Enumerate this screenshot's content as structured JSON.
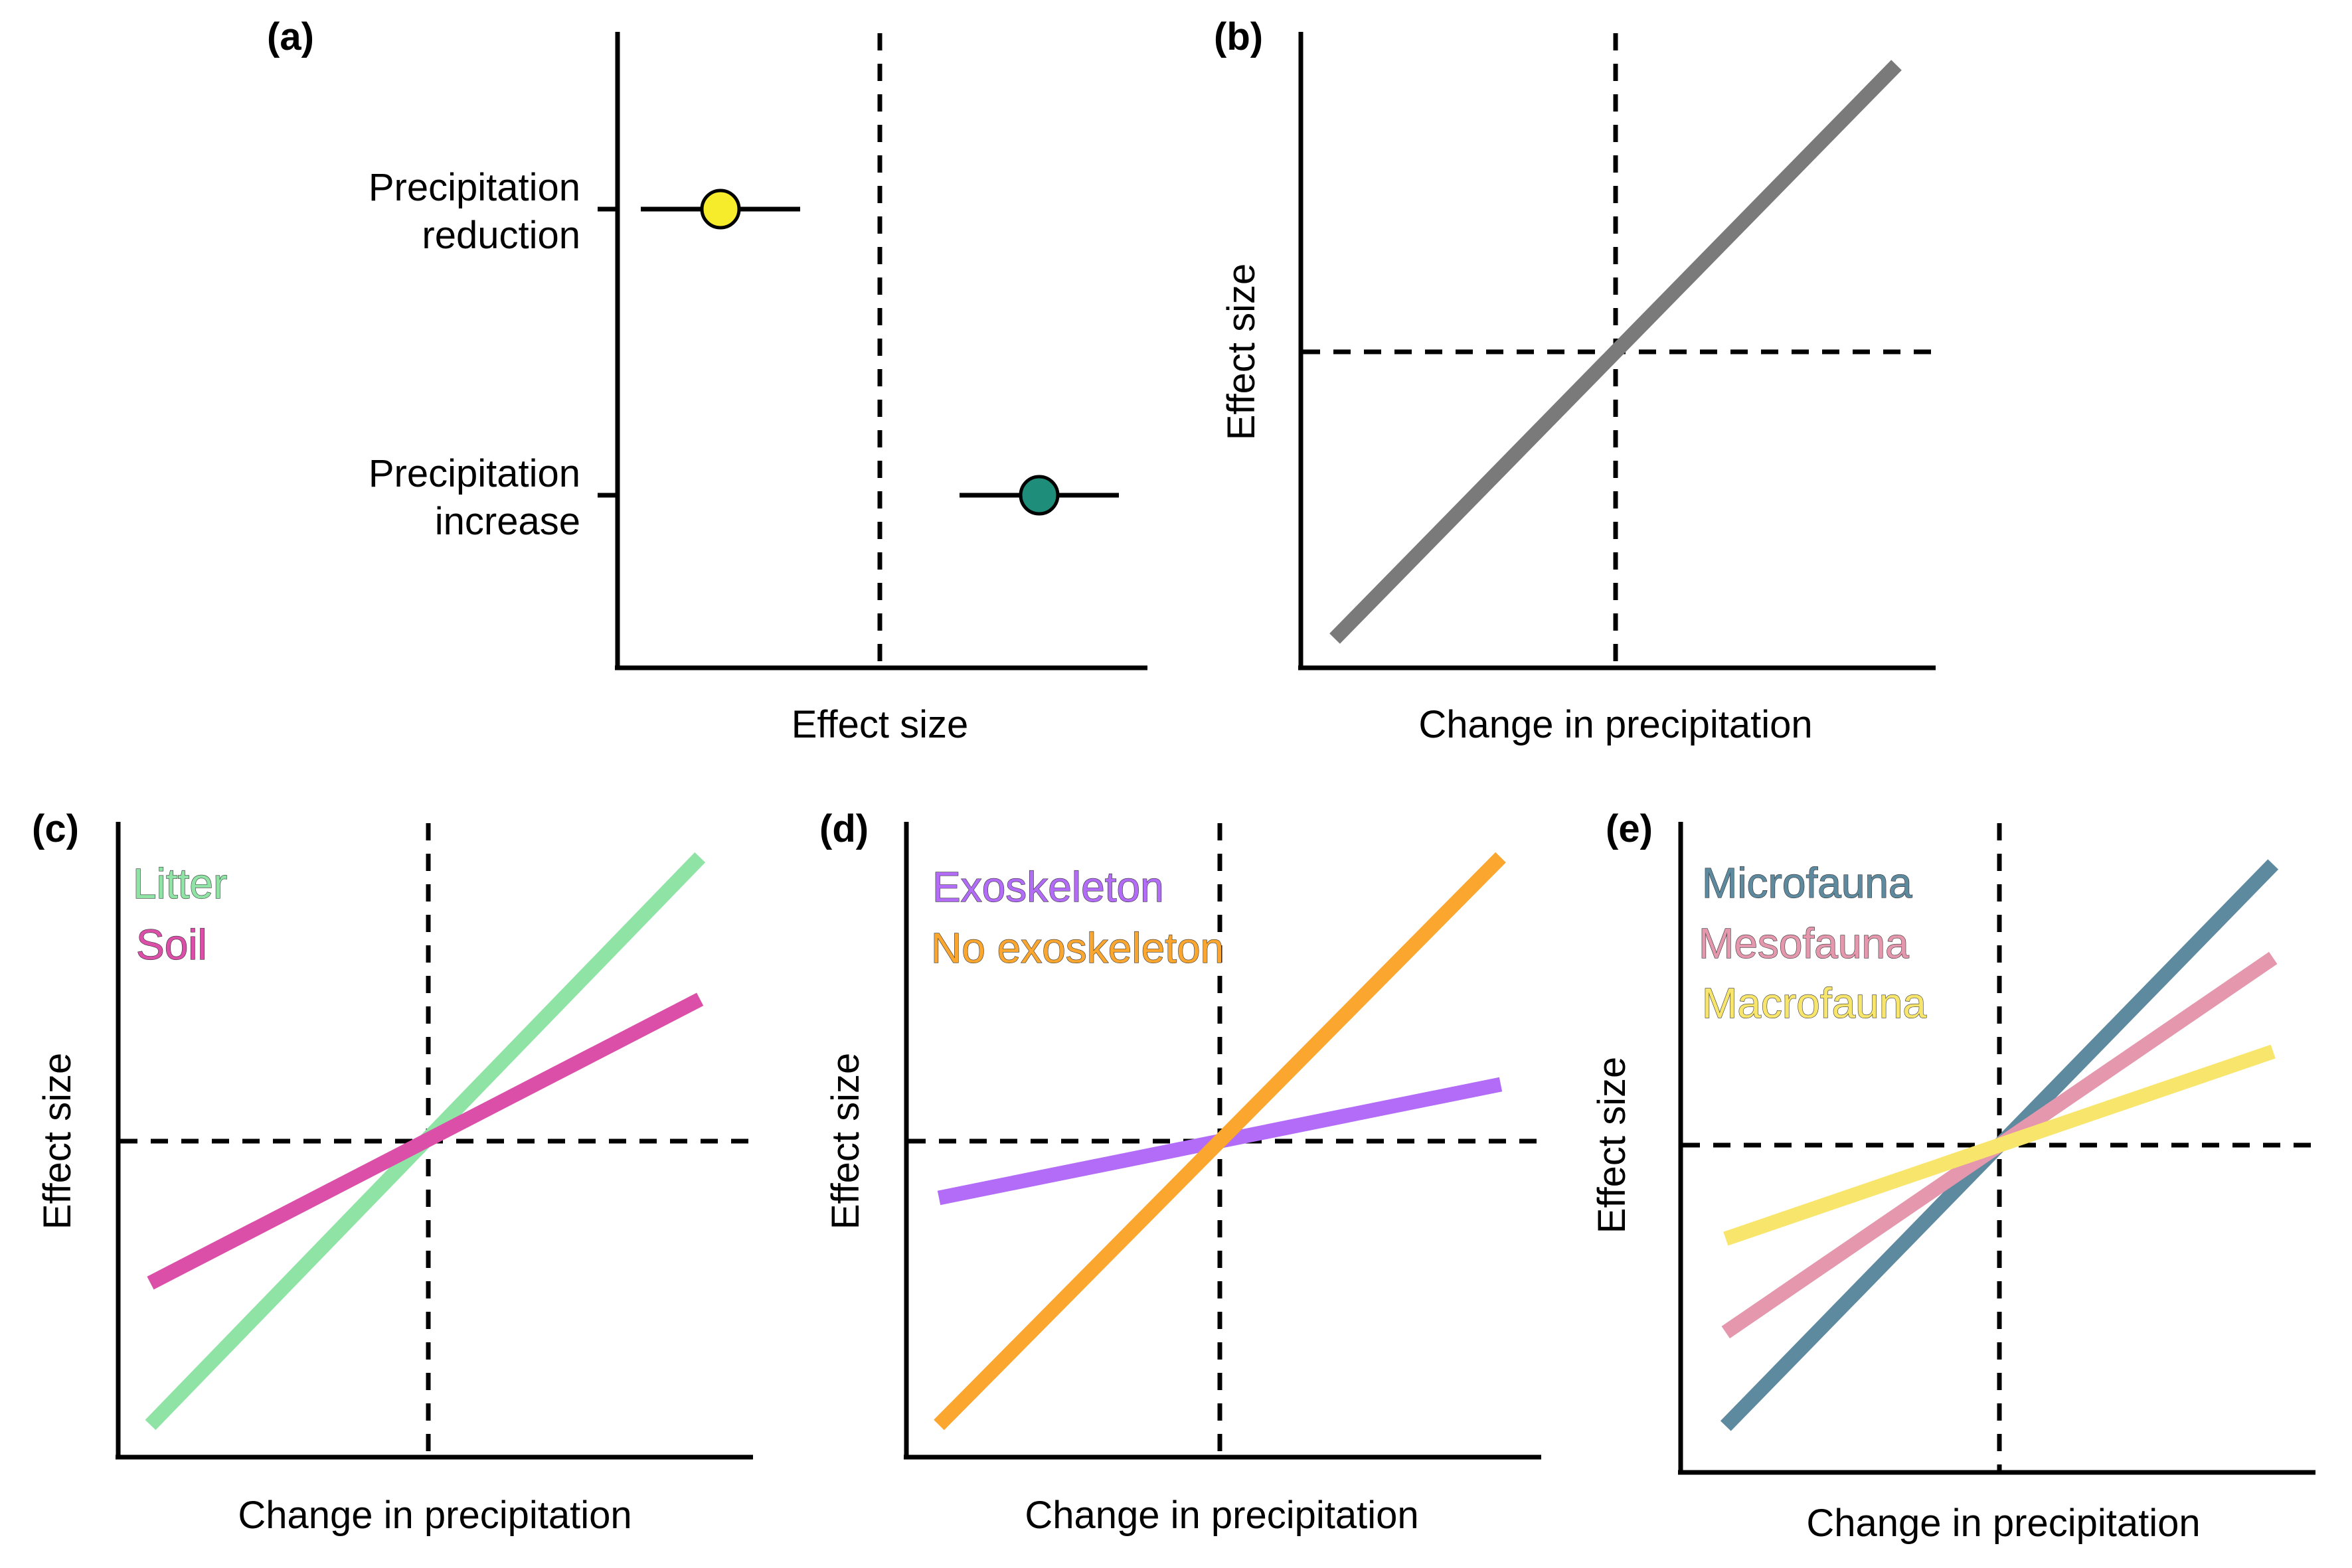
{
  "figure": {
    "panels": [
      {
        "id": "a",
        "label": "(a)",
        "xlabel": "Effect size",
        "rows": [
          {
            "label_line1": "Precipitation",
            "label_line2": "reduction"
          },
          {
            "label_line1": "Precipitation",
            "label_line2": "increase"
          }
        ]
      },
      {
        "id": "b",
        "label": "(b)",
        "xlabel": "Change in precipitation",
        "ylabel": "Effect size"
      },
      {
        "id": "c",
        "label": "(c)",
        "xlabel": "Change in precipitation",
        "ylabel": "Effect size",
        "legend": [
          {
            "name": "Litter"
          },
          {
            "name": "Soil"
          }
        ]
      },
      {
        "id": "d",
        "label": "(d)",
        "xlabel": "Change in precipitation",
        "ylabel": "Effect size",
        "legend": [
          {
            "name": "Exoskeleton"
          },
          {
            "name": "No exoskeleton"
          }
        ]
      },
      {
        "id": "e",
        "label": "(e)",
        "xlabel": "Change in precipitation",
        "ylabel": "Effect size",
        "legend": [
          {
            "name": "Microfauna"
          },
          {
            "name": "Mesofauna"
          },
          {
            "name": "Macrofauna"
          }
        ]
      }
    ]
  },
  "colors": {
    "precip_reduction_point": "#f7ec2b",
    "precip_increase_point": "#1e8e7a",
    "b_line": "#7a7a7a",
    "litter": "#8fe3a5",
    "soil": "#db4fa9",
    "exoskeleton": "#b26cf7",
    "no_exoskeleton": "#fba62f",
    "microfauna": "#5e8aa0",
    "mesofauna": "#e597ad",
    "macrofauna": "#f8e66c"
  },
  "chart_data": [
    {
      "type": "scatter",
      "panel": "a",
      "title": "",
      "xlabel": "Effect size",
      "ylabel": "",
      "xlim": [
        -1,
        1
      ],
      "reference_x": 0,
      "series": [
        {
          "category": "Precipitation reduction",
          "x": -0.6,
          "xmin": -0.9,
          "xmax": -0.3,
          "color": "#f7ec2b"
        },
        {
          "category": "Precipitation increase",
          "x": 0.6,
          "xmin": 0.3,
          "xmax": 0.9,
          "color": "#1e8e7a"
        }
      ]
    },
    {
      "type": "line",
      "panel": "b",
      "xlabel": "Change in precipitation",
      "ylabel": "Effect size",
      "xlim": [
        -1,
        1
      ],
      "ylim": [
        -1,
        1
      ],
      "reference_x": 0,
      "reference_y": 0,
      "series": [
        {
          "x": [
            -0.9,
            0.9
          ],
          "y": [
            -0.9,
            0.9
          ],
          "color": "#7a7a7a"
        }
      ]
    },
    {
      "type": "line",
      "panel": "c",
      "xlabel": "Change in precipitation",
      "ylabel": "Effect size",
      "xlim": [
        -1,
        1
      ],
      "ylim": [
        -1,
        1
      ],
      "reference_x": 0,
      "reference_y": 0,
      "series": [
        {
          "name": "Litter",
          "x": [
            -0.9,
            0.88
          ],
          "y": [
            -0.9,
            0.9
          ],
          "color": "#8fe3a5"
        },
        {
          "name": "Soil",
          "x": [
            -0.9,
            0.88
          ],
          "y": [
            -0.45,
            0.45
          ],
          "color": "#db4fa9"
        }
      ]
    },
    {
      "type": "line",
      "panel": "d",
      "xlabel": "Change in precipitation",
      "ylabel": "Effect size",
      "xlim": [
        -1,
        1
      ],
      "ylim": [
        -1,
        1
      ],
      "reference_x": 0,
      "reference_y": 0,
      "series": [
        {
          "name": "Exoskeleton",
          "x": [
            -0.9,
            0.9
          ],
          "y": [
            -0.18,
            0.18
          ],
          "color": "#b26cf7"
        },
        {
          "name": "No exoskeleton",
          "x": [
            -0.9,
            0.9
          ],
          "y": [
            -0.9,
            0.9
          ],
          "color": "#fba62f"
        }
      ]
    },
    {
      "type": "line",
      "panel": "e",
      "xlabel": "Change in precipitation",
      "ylabel": "Effect size",
      "xlim": [
        -1,
        1
      ],
      "ylim": [
        -1,
        1
      ],
      "reference_x": 0,
      "reference_y": 0,
      "series": [
        {
          "name": "Microfauna",
          "x": [
            -0.9,
            0.9
          ],
          "y": [
            -0.9,
            0.9
          ],
          "color": "#5e8aa0"
        },
        {
          "name": "Mesofauna",
          "x": [
            -0.9,
            0.9
          ],
          "y": [
            -0.6,
            0.6
          ],
          "color": "#e597ad"
        },
        {
          "name": "Macrofauna",
          "x": [
            -0.9,
            0.9
          ],
          "y": [
            -0.3,
            0.3
          ],
          "color": "#f8e66c"
        }
      ]
    }
  ]
}
